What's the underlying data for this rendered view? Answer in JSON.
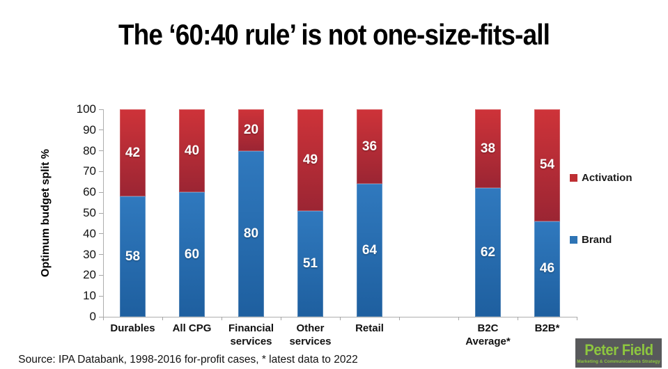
{
  "title": "The ‘60:40 rule’ is not one-size-fits-all",
  "chart_data": {
    "type": "bar",
    "stacked": true,
    "title": "The ‘60:40 rule’ is not one-size-fits-all",
    "xlabel": "",
    "ylabel": "Optimum budget split %",
    "ylim": [
      0,
      100
    ],
    "ytick_step": 10,
    "grid": false,
    "legend_position": "right",
    "categories": [
      "Durables",
      "All CPG",
      "Financial services",
      "Other services",
      "Retail",
      "",
      "B2C Average*",
      "B2B*"
    ],
    "category_label_lines": [
      [
        "Durables"
      ],
      [
        "All CPG"
      ],
      [
        "Financial",
        "services"
      ],
      [
        "Other",
        "services"
      ],
      [
        "Retail"
      ],
      [],
      [
        "B2C",
        "Average*"
      ],
      [
        "B2B*"
      ]
    ],
    "series": [
      {
        "name": "Brand",
        "color_top": "#3079BE",
        "color_bottom": "#1E5F9F",
        "values": [
          58,
          60,
          80,
          51,
          64,
          null,
          62,
          46
        ]
      },
      {
        "name": "Activation",
        "color_top": "#CE3339",
        "color_bottom": "#9B2533",
        "values": [
          42,
          40,
          20,
          49,
          36,
          null,
          38,
          54
        ]
      }
    ],
    "legend": [
      {
        "label": "Activation",
        "color": "#BE2F33"
      },
      {
        "label": "Brand",
        "color": "#2E74B5"
      }
    ]
  },
  "footer": {
    "source": "Source: IPA Databank, 1998-2016 for-profit cases, * latest data to 2022"
  },
  "logo": {
    "name": "Peter Field",
    "tagline": "Marketing & Communications Strategy",
    "text_color": "#8DC63F",
    "bg_color": "#58595B"
  }
}
